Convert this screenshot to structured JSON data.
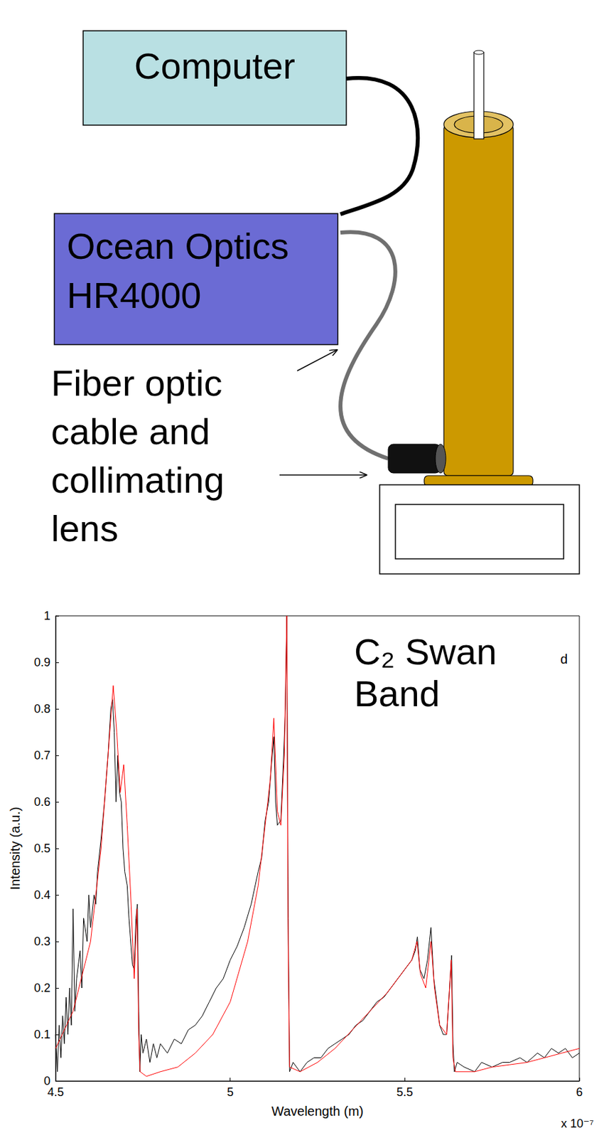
{
  "diagram": {
    "computer": {
      "label": "Computer"
    },
    "spectrometer": {
      "lines": [
        "Ocean Optics",
        "HR4000"
      ]
    },
    "fiber_label": {
      "lines": [
        "Fiber optic",
        "cable and",
        "collimating",
        "lens"
      ]
    }
  },
  "chart_data": {
    "type": "line",
    "title": "C₂ Swan Band",
    "x_label": "Wavelength (m)",
    "y_label": "Intensity (a.u.)",
    "annotations": [
      "x 10⁻⁷",
      "d"
    ],
    "xlim": [
      4.5e-07,
      6e-07
    ],
    "xticks": [
      {
        "value": 4.5e-07,
        "label": "4.5"
      },
      {
        "value": 5e-07,
        "label": "5"
      },
      {
        "value": 5.5e-07,
        "label": "5.5"
      },
      {
        "value": 6e-07,
        "label": "6"
      }
    ],
    "ylim": [
      0,
      1
    ],
    "yticks": [
      0,
      0.1,
      0.2,
      0.3,
      0.4,
      0.5,
      0.6,
      0.7,
      0.8,
      0.9,
      1
    ],
    "grid": false,
    "series": [
      {
        "color": "#000000",
        "x": [
          4.5e-07,
          4.505e-07,
          4.51e-07,
          4.515e-07,
          4.52e-07,
          4.525e-07,
          4.53e-07,
          4.535e-07,
          4.54e-07,
          4.545e-07,
          4.55e-07,
          4.555e-07,
          4.56e-07,
          4.57e-07,
          4.575e-07,
          4.58e-07,
          4.59e-07,
          4.595e-07,
          4.6e-07,
          4.61e-07,
          4.615e-07,
          4.62e-07,
          4.63e-07,
          4.64e-07,
          4.65e-07,
          4.658e-07,
          4.663e-07,
          4.668e-07,
          4.673e-07,
          4.678e-07,
          4.683e-07,
          4.688e-07,
          4.693e-07,
          4.698e-07,
          4.705e-07,
          4.71e-07,
          4.715e-07,
          4.72e-07,
          4.725e-07,
          4.73e-07,
          4.734e-07,
          4.738e-07,
          4.741e-07,
          4.745e-07,
          4.75e-07,
          4.76e-07,
          4.77e-07,
          4.78e-07,
          4.79e-07,
          4.8e-07,
          4.82e-07,
          4.84e-07,
          4.86e-07,
          4.88e-07,
          4.9e-07,
          4.92e-07,
          4.94e-07,
          4.96e-07,
          4.98e-07,
          5e-07,
          5.02e-07,
          5.04e-07,
          5.06e-07,
          5.08e-07,
          5.09e-07,
          5.1e-07,
          5.11e-07,
          5.118e-07,
          5.125e-07,
          5.13e-07,
          5.135e-07,
          5.145e-07,
          5.153e-07,
          5.158e-07,
          5.162e-07,
          5.166e-07,
          5.17e-07,
          5.18e-07,
          5.2e-07,
          5.22e-07,
          5.24e-07,
          5.26e-07,
          5.28e-07,
          5.3e-07,
          5.32e-07,
          5.34e-07,
          5.36e-07,
          5.38e-07,
          5.4e-07,
          5.42e-07,
          5.44e-07,
          5.46e-07,
          5.48e-07,
          5.5e-07,
          5.52e-07,
          5.53e-07,
          5.536e-07,
          5.543e-07,
          5.555e-07,
          5.565e-07,
          5.575e-07,
          5.583e-07,
          5.59e-07,
          5.6e-07,
          5.61e-07,
          5.62e-07,
          5.63e-07,
          5.634e-07,
          5.638e-07,
          5.642e-07,
          5.65e-07,
          5.67e-07,
          5.7e-07,
          5.72e-07,
          5.75e-07,
          5.78e-07,
          5.8e-07,
          5.83e-07,
          5.85e-07,
          5.88e-07,
          5.9e-07,
          5.92e-07,
          5.94e-07,
          5.96e-07,
          5.98e-07,
          6e-07
        ],
        "values": [
          0.1,
          0.02,
          0.12,
          0.05,
          0.14,
          0.08,
          0.18,
          0.1,
          0.2,
          0.12,
          0.37,
          0.15,
          0.22,
          0.28,
          0.2,
          0.35,
          0.3,
          0.4,
          0.33,
          0.4,
          0.38,
          0.45,
          0.52,
          0.6,
          0.7,
          0.8,
          0.82,
          0.75,
          0.6,
          0.7,
          0.62,
          0.6,
          0.5,
          0.45,
          0.42,
          0.35,
          0.3,
          0.25,
          0.24,
          0.35,
          0.38,
          0.15,
          0.02,
          0.1,
          0.06,
          0.09,
          0.04,
          0.08,
          0.05,
          0.08,
          0.06,
          0.09,
          0.08,
          0.11,
          0.12,
          0.14,
          0.17,
          0.2,
          0.22,
          0.26,
          0.29,
          0.33,
          0.38,
          0.45,
          0.48,
          0.56,
          0.6,
          0.68,
          0.74,
          0.6,
          0.55,
          0.56,
          0.7,
          0.8,
          1.0,
          0.35,
          0.02,
          0.04,
          0.02,
          0.04,
          0.05,
          0.05,
          0.07,
          0.08,
          0.09,
          0.1,
          0.12,
          0.13,
          0.15,
          0.17,
          0.18,
          0.2,
          0.22,
          0.24,
          0.26,
          0.28,
          0.31,
          0.24,
          0.22,
          0.26,
          0.33,
          0.22,
          0.18,
          0.12,
          0.1,
          0.1,
          0.22,
          0.27,
          0.08,
          0.02,
          0.04,
          0.03,
          0.02,
          0.04,
          0.03,
          0.04,
          0.04,
          0.05,
          0.04,
          0.06,
          0.05,
          0.07,
          0.06,
          0.07,
          0.05,
          0.06
        ]
      },
      {
        "color": "#ff0000",
        "x": [
          4.5e-07,
          4.55e-07,
          4.6e-07,
          4.63e-07,
          4.65e-07,
          4.665e-07,
          4.675e-07,
          4.685e-07,
          4.695e-07,
          4.705e-07,
          4.715e-07,
          4.725e-07,
          4.733e-07,
          4.738e-07,
          4.742e-07,
          4.76e-07,
          4.8e-07,
          4.85e-07,
          4.9e-07,
          4.95e-07,
          5e-07,
          5.05e-07,
          5.08e-07,
          5.1e-07,
          5.115e-07,
          5.125e-07,
          5.135e-07,
          5.145e-07,
          5.155e-07,
          5.162e-07,
          5.166e-07,
          5.17e-07,
          5.2e-07,
          5.25e-07,
          5.3e-07,
          5.35e-07,
          5.4e-07,
          5.45e-07,
          5.5e-07,
          5.52e-07,
          5.535e-07,
          5.545e-07,
          5.56e-07,
          5.575e-07,
          5.585e-07,
          5.6e-07,
          5.62e-07,
          5.633e-07,
          5.638e-07,
          5.645e-07,
          5.7e-07,
          5.75e-07,
          5.8e-07,
          5.85e-07,
          5.9e-07,
          5.95e-07,
          6e-07
        ],
        "values": [
          0.07,
          0.15,
          0.3,
          0.5,
          0.7,
          0.85,
          0.75,
          0.62,
          0.68,
          0.55,
          0.4,
          0.22,
          0.37,
          0.1,
          0.02,
          0.01,
          0.02,
          0.03,
          0.06,
          0.1,
          0.17,
          0.3,
          0.42,
          0.55,
          0.65,
          0.78,
          0.58,
          0.55,
          0.7,
          1.0,
          0.3,
          0.03,
          0.02,
          0.04,
          0.07,
          0.11,
          0.15,
          0.19,
          0.24,
          0.26,
          0.3,
          0.23,
          0.2,
          0.3,
          0.2,
          0.12,
          0.1,
          0.26,
          0.05,
          0.02,
          0.02,
          0.03,
          0.035,
          0.04,
          0.05,
          0.06,
          0.07
        ]
      }
    ]
  }
}
